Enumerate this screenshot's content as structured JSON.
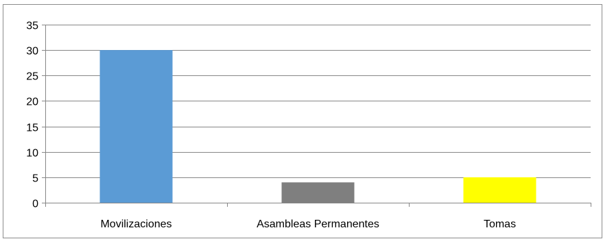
{
  "chart_data": {
    "type": "bar",
    "categories": [
      "Movilizaciones",
      "Asambleas Permanentes",
      "Tomas"
    ],
    "values": [
      30,
      4,
      5
    ],
    "bar_colors": [
      "#5b9bd5",
      "#7f7f7f",
      "#ffff00"
    ],
    "title": "",
    "xlabel": "",
    "ylabel": "",
    "ylim": [
      0,
      35
    ],
    "yticks": [
      0,
      5,
      10,
      15,
      20,
      25,
      30,
      35
    ],
    "grid": true,
    "legend": "none"
  }
}
